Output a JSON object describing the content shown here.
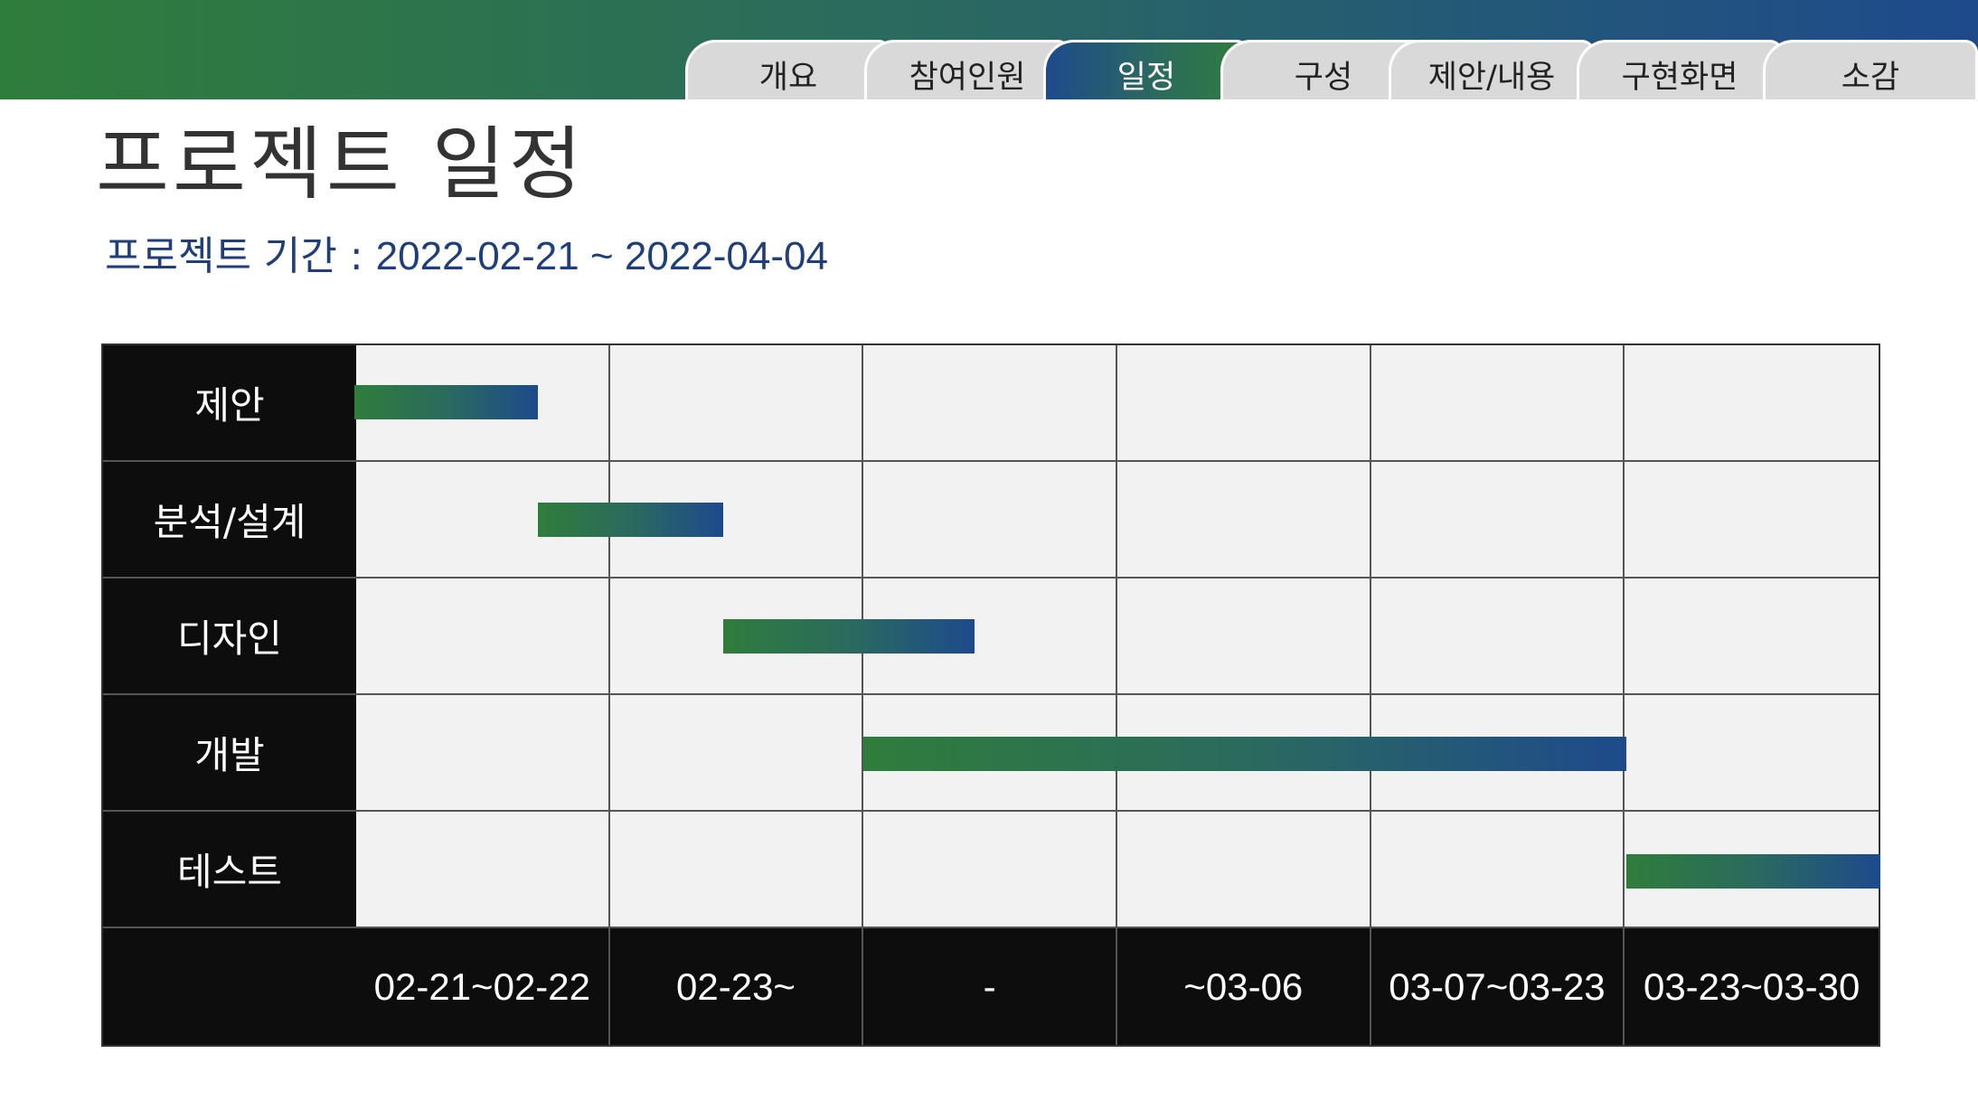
{
  "colors": {
    "accent_green": "#2f7d3c",
    "accent_blue": "#1e4a8c",
    "subtitle_blue": "#1f3e7a",
    "header_black": "#0d0d0d",
    "grid_cell": "#f2f2f2"
  },
  "tabs": [
    {
      "label": "개요",
      "active": false
    },
    {
      "label": "참여인원",
      "active": false
    },
    {
      "label": "일정",
      "active": true
    },
    {
      "label": "구성",
      "active": false
    },
    {
      "label": "제안/내용",
      "active": false
    },
    {
      "label": "구현화면",
      "active": false
    },
    {
      "label": "소감",
      "active": false
    }
  ],
  "page": {
    "title": "프로젝트 일정",
    "period_label": "프로젝트 기간 : ",
    "period_value": "2022-02-21 ~ 2022-04-04"
  },
  "chart_data": {
    "type": "gantt",
    "columns": [
      "02-21~02-22",
      "02-23~",
      "-",
      "~03-06",
      "03-07~03-23",
      "03-23~03-30"
    ],
    "tasks": [
      {
        "name": "제안",
        "start_col": 0.0,
        "end_col": 0.72
      },
      {
        "name": "분석/설계",
        "start_col": 0.72,
        "end_col": 1.45
      },
      {
        "name": "디자인",
        "start_col": 1.45,
        "end_col": 2.44
      },
      {
        "name": "개발",
        "start_col": 2.0,
        "end_col": 5.0
      },
      {
        "name": "테스트",
        "start_col": 5.0,
        "end_col": 6.0
      }
    ]
  }
}
